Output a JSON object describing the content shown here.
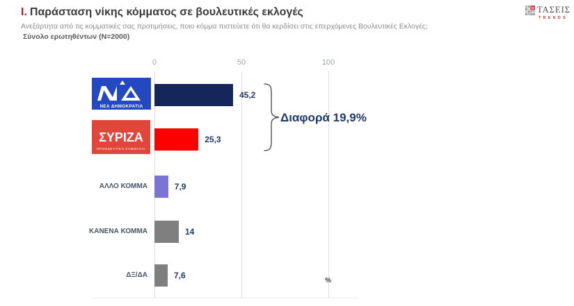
{
  "header": {
    "section_number": "Ι.",
    "title": "Παράσταση νίκης κόμματος σε βουλευτικές εκλογές",
    "subtitle": "Ανεξάρτητα από τις κομματικές σας προτιμήσεις, ποιο κόμμα πιστεύετε ότι θα κερδίσει στις επερχόμενες Βουλευτικές Εκλογές;",
    "sample_note": "Σύνολο ερωτηθέντων (Ν=2000)"
  },
  "brand": {
    "name": "ΤΑΣΕΙΣ",
    "tagline": "TRENDS"
  },
  "parties": {
    "nd": {
      "caption": "ΝΕΑ ΔΗΜΟΚΡΑΤΙΑ"
    },
    "syriza": {
      "name": "ΣΥΡΙΖΑ",
      "caption": "ΠΡΟΟΔΕΥΤΙΚΗ ΣΥΜΜΑΧΙΑ"
    }
  },
  "chart_data": {
    "type": "bar",
    "orientation": "horizontal",
    "categories": [
      "ΝΕΑ ΔΗΜΟΚΡΑΤΙΑ",
      "ΣΥΡΙΖΑ ΠΡΟΟΔΕΥΤΙΚΗ ΣΥΜΜΑΧΙΑ",
      "ΑΛΛΟ ΚΟΜΜΑ",
      "ΚΑΝΕΝΑ ΚΟΜΜΑ",
      "ΔΞ/ΔΑ"
    ],
    "values": [
      45.2,
      25.3,
      7.9,
      14,
      7.6
    ],
    "value_labels": [
      "45,2",
      "25,3",
      "7,9",
      "14",
      "7,6"
    ],
    "bar_colors": [
      "#15265B",
      "#FF0000",
      "#7B74D5",
      "#7F7F7F",
      "#7F7F7F"
    ],
    "xlim": [
      0,
      100
    ],
    "x_ticks": [
      0,
      50,
      100
    ],
    "x_tick_labels": [
      "0",
      "50",
      "100"
    ],
    "unit_label": "%",
    "grid": true,
    "annotation": {
      "text": "Διαφορά 19,9%"
    },
    "colors": {
      "value_label": "#1F3864",
      "category_label": "#44546A",
      "annotation": "#1F3864",
      "nd_logo_blue": "#2448BF",
      "syriza_logo_red": "#E1463B"
    }
  }
}
